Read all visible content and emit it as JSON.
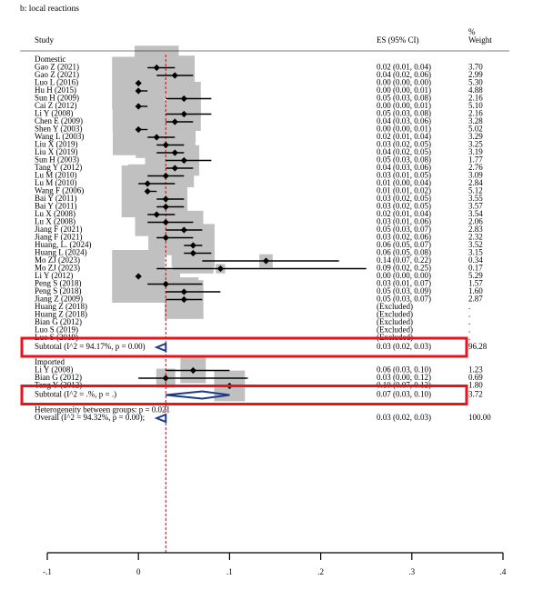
{
  "chart_data": {
    "type": "forest",
    "title": "b: local reactions",
    "columns": {
      "study": "Study",
      "es": "ES (95% CI)",
      "weight_line1": "%",
      "weight_line2": "Weight"
    },
    "xlim": [
      -0.1,
      0.4
    ],
    "xticks": [
      {
        "value": -0.1,
        "label": "-.1"
      },
      {
        "value": 0,
        "label": "0"
      },
      {
        "value": 0.1,
        "label": ".1"
      },
      {
        "value": 0.2,
        "label": ".2"
      },
      {
        "value": 0.3,
        "label": ".3"
      },
      {
        "value": 0.4,
        "label": ".4"
      }
    ],
    "overall_line_x": 0.03,
    "groups": [
      {
        "name": "Domestic",
        "studies": [
          {
            "label": "Gao Z (2021)",
            "es": 0.02,
            "lo": 0.01,
            "hi": 0.04,
            "weight": 3.7,
            "es_text": "0.02 (0.01, 0.04)",
            "weight_text": "3.70"
          },
          {
            "label": "Gao Z (2021)",
            "es": 0.04,
            "lo": 0.02,
            "hi": 0.06,
            "weight": 2.99,
            "es_text": "0.04 (0.02, 0.06)",
            "weight_text": "2.99"
          },
          {
            "label": "Luo L (2016)",
            "es": 0.0,
            "lo": 0.0,
            "hi": 0.0,
            "weight": 5.3,
            "es_text": "0.00 (0.00, 0.00)",
            "weight_text": "5.30"
          },
          {
            "label": "Hu H (2015)",
            "es": 0.0,
            "lo": 0.0,
            "hi": 0.01,
            "weight": 4.88,
            "es_text": "0.00 (0.00, 0.01)",
            "weight_text": "4.88"
          },
          {
            "label": "Sun H (2009)",
            "es": 0.05,
            "lo": 0.03,
            "hi": 0.08,
            "weight": 2.16,
            "es_text": "0.05 (0.03, 0.08)",
            "weight_text": "2.16"
          },
          {
            "label": "Cai Z (2012)",
            "es": 0.0,
            "lo": 0.0,
            "hi": 0.01,
            "weight": 5.1,
            "es_text": "0.00 (0.00, 0.01)",
            "weight_text": "5.10"
          },
          {
            "label": "Li Y (2008)",
            "es": 0.05,
            "lo": 0.03,
            "hi": 0.08,
            "weight": 2.16,
            "es_text": "0.05 (0.03, 0.08)",
            "weight_text": "2.16"
          },
          {
            "label": "Chen E (2009)",
            "es": 0.04,
            "lo": 0.03,
            "hi": 0.06,
            "weight": 3.28,
            "es_text": "0.04 (0.03, 0.06)",
            "weight_text": "3.28"
          },
          {
            "label": "Shen Y (2003)",
            "es": 0.0,
            "lo": 0.0,
            "hi": 0.01,
            "weight": 5.02,
            "es_text": "0.00 (0.00, 0.01)",
            "weight_text": "5.02"
          },
          {
            "label": "Wang L (2003)",
            "es": 0.02,
            "lo": 0.01,
            "hi": 0.04,
            "weight": 3.29,
            "es_text": "0.02 (0.01, 0.04)",
            "weight_text": "3.29"
          },
          {
            "label": "Liu X (2019)",
            "es": 0.03,
            "lo": 0.02,
            "hi": 0.05,
            "weight": 3.25,
            "es_text": "0.03 (0.02, 0.05)",
            "weight_text": "3.25"
          },
          {
            "label": "Liu X (2019)",
            "es": 0.04,
            "lo": 0.02,
            "hi": 0.05,
            "weight": 3.19,
            "es_text": "0.04 (0.02, 0.05)",
            "weight_text": "3.19"
          },
          {
            "label": "Sun H (2003)",
            "es": 0.05,
            "lo": 0.03,
            "hi": 0.08,
            "weight": 1.77,
            "es_text": "0.05 (0.03, 0.08)",
            "weight_text": "1.77"
          },
          {
            "label": "Tang Y (2012)",
            "es": 0.04,
            "lo": 0.03,
            "hi": 0.06,
            "weight": 2.76,
            "es_text": "0.04 (0.03, 0.06)",
            "weight_text": "2.76"
          },
          {
            "label": "Lu M (2010)",
            "es": 0.03,
            "lo": 0.01,
            "hi": 0.05,
            "weight": 3.09,
            "es_text": "0.03 (0.01, 0.05)",
            "weight_text": "3.09"
          },
          {
            "label": "Lu M (2010)",
            "es": 0.01,
            "lo": 0.0,
            "hi": 0.04,
            "weight": 2.84,
            "es_text": "0.01 (0.00, 0.04)",
            "weight_text": "2.84"
          },
          {
            "label": "Wang F (2006)",
            "es": 0.01,
            "lo": 0.01,
            "hi": 0.02,
            "weight": 5.12,
            "es_text": "0.01 (0.01, 0.02)",
            "weight_text": "5.12"
          },
          {
            "label": "Bai Y (2011)",
            "es": 0.03,
            "lo": 0.02,
            "hi": 0.05,
            "weight": 3.55,
            "es_text": "0.03 (0.02, 0.05)",
            "weight_text": "3.55"
          },
          {
            "label": "Bai Y (2011)",
            "es": 0.03,
            "lo": 0.02,
            "hi": 0.05,
            "weight": 3.57,
            "es_text": "0.03 (0.02, 0.05)",
            "weight_text": "3.57"
          },
          {
            "label": "Lu X (2008)",
            "es": 0.02,
            "lo": 0.01,
            "hi": 0.04,
            "weight": 3.54,
            "es_text": "0.02 (0.01, 0.04)",
            "weight_text": "3.54"
          },
          {
            "label": "Lu X (2008)",
            "es": 0.03,
            "lo": 0.01,
            "hi": 0.06,
            "weight": 2.06,
            "es_text": "0.03 (0.01, 0.06)",
            "weight_text": "2.06"
          },
          {
            "label": "Jiang F (2021)",
            "es": 0.05,
            "lo": 0.03,
            "hi": 0.07,
            "weight": 2.83,
            "es_text": "0.05 (0.03, 0.07)",
            "weight_text": "2.83"
          },
          {
            "label": "Jiang F (2021)",
            "es": 0.03,
            "lo": 0.02,
            "hi": 0.06,
            "weight": 2.32,
            "es_text": "0.03 (0.02, 0.06)",
            "weight_text": "2.32"
          },
          {
            "label": "Huang, L. (2024)",
            "es": 0.06,
            "lo": 0.05,
            "hi": 0.07,
            "weight": 3.52,
            "es_text": "0.06 (0.05, 0.07)",
            "weight_text": "3.52"
          },
          {
            "label": "Huang L (2024)",
            "es": 0.06,
            "lo": 0.05,
            "hi": 0.08,
            "weight": 3.15,
            "es_text": "0.06 (0.05, 0.08)",
            "weight_text": "3.15"
          },
          {
            "label": "Mo ZJ (2023)",
            "es": 0.14,
            "lo": 0.07,
            "hi": 0.22,
            "weight": 0.34,
            "es_text": "0.14 (0.07, 0.22)",
            "weight_text": "0.34"
          },
          {
            "label": "Mo ZJ (2023)",
            "es": 0.09,
            "lo": 0.02,
            "hi": 0.25,
            "weight": 0.17,
            "es_text": "0.09 (0.02, 0.25)",
            "weight_text": "0.17"
          },
          {
            "label": "Li Y (2012)",
            "es": 0.0,
            "lo": 0.0,
            "hi": 0.0,
            "weight": 5.29,
            "es_text": "0.00 (0.00, 0.00)",
            "weight_text": "5.29"
          },
          {
            "label": "Peng S (2018)",
            "es": 0.03,
            "lo": 0.01,
            "hi": 0.07,
            "weight": 1.57,
            "es_text": "0.03 (0.01, 0.07)",
            "weight_text": "1.57"
          },
          {
            "label": "Peng S (2018)",
            "es": 0.05,
            "lo": 0.03,
            "hi": 0.09,
            "weight": 1.6,
            "es_text": "0.05 (0.03, 0.09)",
            "weight_text": "1.60"
          },
          {
            "label": "Jiang Z (2009)",
            "es": 0.05,
            "lo": 0.03,
            "hi": 0.07,
            "weight": 2.87,
            "es_text": "0.05 (0.03, 0.07)",
            "weight_text": "2.87"
          },
          {
            "label": "Huang Z (2018)",
            "es": null,
            "es_text": "(Excluded)",
            "weight_text": "."
          },
          {
            "label": "Huang Z (2018)",
            "es": null,
            "es_text": "(Excluded)",
            "weight_text": "."
          },
          {
            "label": "Bian G (2012)",
            "es": null,
            "es_text": "(Excluded)",
            "weight_text": "."
          },
          {
            "label": "Luo S (2019)",
            "es": null,
            "es_text": "(Excluded)",
            "weight_text": "."
          },
          {
            "label": "Luo S (2019)",
            "es": null,
            "es_text": "(Excluded)",
            "weight_text": "."
          }
        ],
        "subtotal": {
          "label": "Subtotal  (I^2 = 94.17%, p = 0.00)",
          "es": 0.03,
          "lo": 0.02,
          "hi": 0.03,
          "es_text": "0.03 (0.02, 0.03)",
          "weight_text": "96.28"
        }
      },
      {
        "name": "Imported",
        "studies": [
          {
            "label": "Li Y (2008)",
            "es": 0.06,
            "lo": 0.03,
            "hi": 0.1,
            "weight": 1.23,
            "es_text": "0.06 (0.03, 0.10)",
            "weight_text": "1.23"
          },
          {
            "label": "Bian G (2012)",
            "es": 0.03,
            "lo": 0.0,
            "hi": 0.12,
            "weight": 0.69,
            "es_text": "0.03 (0.00, 0.12)",
            "weight_text": "0.69"
          },
          {
            "label": "Tang Y (2012)",
            "es": 0.1,
            "lo": 0.07,
            "hi": 0.12,
            "weight": 1.8,
            "es_text": "0.10 (0.07, 0.12)",
            "weight_text": "1.80"
          }
        ],
        "subtotal": {
          "label": "Subtotal  (I^2 = .%, p = .)",
          "es": 0.07,
          "lo": 0.03,
          "hi": 0.1,
          "es_text": "0.07 (0.03, 0.10)",
          "weight_text": "3.72"
        }
      }
    ],
    "heterogeneity": "Heterogeneity between groups: p = 0.021",
    "overall": {
      "label": "Overall  (I^2 = 94.32%, p = 0.00);",
      "es": 0.03,
      "lo": 0.02,
      "hi": 0.03,
      "es_text": "0.03 (0.02, 0.03)",
      "weight_text": "100.00"
    },
    "colors": {
      "weight_box": "#c0c0c0",
      "highlight_frame": "#e8141c",
      "diamond": "#1a3a8c"
    }
  }
}
